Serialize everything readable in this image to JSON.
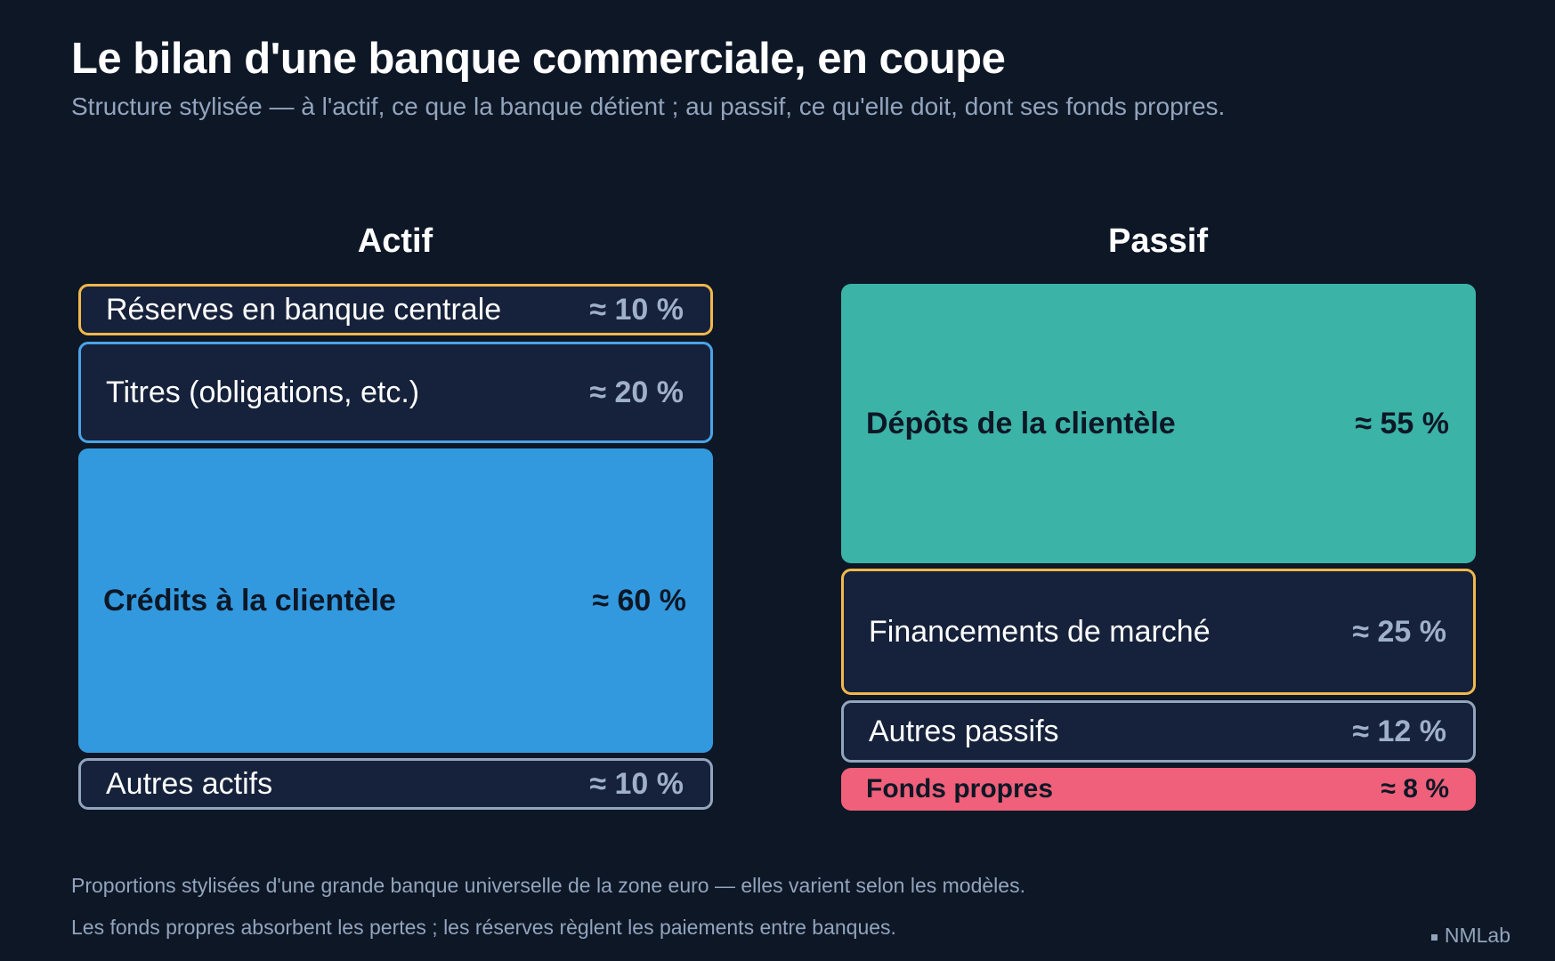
{
  "title": "Le bilan d'une banque commerciale, en coupe",
  "subtitle": "Structure stylisée — à l'actif, ce que la banque détient ; au passif, ce qu'elle doit, dont ses fonds propres.",
  "actif": {
    "heading": "Actif",
    "items": [
      {
        "label": "Réserves en banque centrale",
        "pct": "≈ 10 %",
        "share": 10,
        "color": "#f2b84b",
        "style": "outline"
      },
      {
        "label": "Titres (obligations, etc.)",
        "pct": "≈ 20 %",
        "share": 20,
        "color": "#4aa3e8",
        "style": "outline"
      },
      {
        "label": "Crédits à la clientèle",
        "pct": "≈ 60 %",
        "share": 60,
        "color": "#3399de",
        "style": "filled"
      },
      {
        "label": "Autres actifs",
        "pct": "≈ 10 %",
        "share": 10,
        "color": "#93a4bd",
        "style": "outline"
      }
    ]
  },
  "passif": {
    "heading": "Passif",
    "items": [
      {
        "label": "Dépôts de la clientèle",
        "pct": "≈ 55 %",
        "share": 55,
        "color": "#3bb3a6",
        "style": "filled"
      },
      {
        "label": "Financements de marché",
        "pct": "≈ 25 %",
        "share": 25,
        "color": "#f2b84b",
        "style": "outline"
      },
      {
        "label": "Autres passifs",
        "pct": "≈ 12 %",
        "share": 12,
        "color": "#93a4bd",
        "style": "outline"
      },
      {
        "label": "Fonds propres",
        "pct": "≈ 8 %",
        "share": 8,
        "color": "#f0607a",
        "style": "filled"
      }
    ]
  },
  "notes": {
    "line1": "Proportions stylisées d'une grande banque universelle de la zone euro — elles varient selon les modèles.",
    "line2": "Les fonds propres absorbent les pertes ; les réserves règlent les paiements entre banques."
  },
  "brand": "NMLab"
}
